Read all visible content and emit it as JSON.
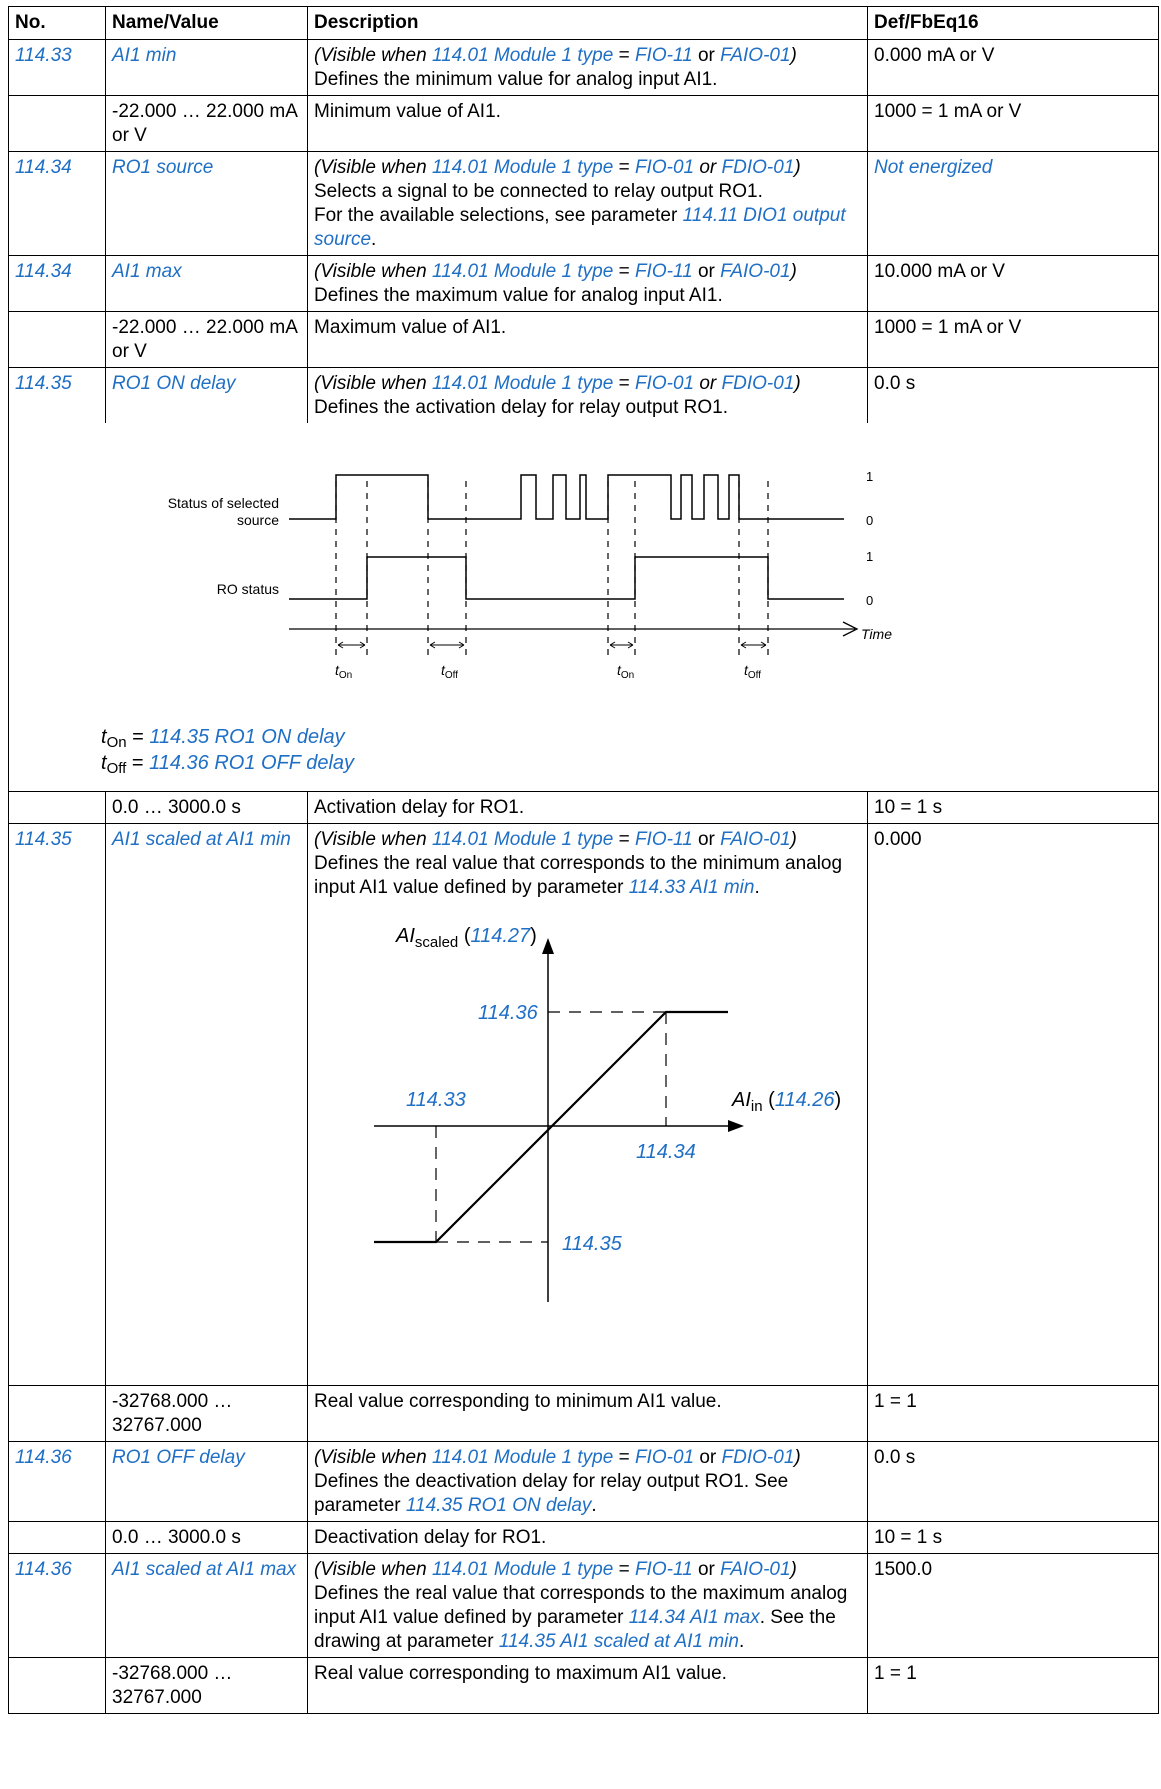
{
  "headers": {
    "no": "No.",
    "name": "Name/Value",
    "desc": "Description",
    "def": "Def/FbEq16"
  },
  "common": {
    "visible_when": "(Visible when",
    "module_type": "114.01 Module 1 type",
    "eq": "=",
    "or": "or",
    "close": ")",
    "fio11": "FIO-11",
    "faio01": "FAIO-01",
    "fio01": "FIO-01",
    "fdio01": "FDIO-01",
    "or_it": "or"
  },
  "rows": {
    "r1": {
      "no": "114.33",
      "name": "AI1 min",
      "desc": "Defines the minimum value for analog input AI1.",
      "def": "0.000 mA or V"
    },
    "r2": {
      "name": "-22.000 … 22.000 mA or V",
      "desc": "Minimum value of AI1.",
      "def": "1000 = 1 mA or V"
    },
    "r3": {
      "no": "114.34",
      "name": "RO1 source",
      "desc1": "Selects a signal to be connected to relay output RO1.",
      "desc2a": "For the available selections, see parameter",
      "desc2link": "114.11 DIO1 output source",
      "desc2b": ".",
      "def": "Not energized"
    },
    "r4": {
      "no": "114.34",
      "name": "AI1 max",
      "desc": "Defines the maximum value for analog input AI1.",
      "def": "10.000 mA or V"
    },
    "r5": {
      "name": "-22.000 … 22.000 mA or V",
      "desc": "Maximum value of AI1.",
      "def": "1000 = 1 mA or V"
    },
    "r6": {
      "no": "114.35",
      "name": "RO1 ON delay",
      "desc": "Defines the activation delay for relay output RO1.",
      "def": "0.0 s"
    },
    "r7": {
      "name": "0.0 … 3000.0 s",
      "desc": "Activation delay for RO1.",
      "def": "10 = 1 s"
    },
    "r8": {
      "no": "114.35",
      "name": "AI1 scaled at AI1 min",
      "desc_a": "Defines the real value that corresponds to the minimum analog input AI1 value defined by parameter",
      "desc_link": "114.33 AI1 min",
      "desc_b": ".",
      "def": "0.000"
    },
    "r9": {
      "name": "-32768.000 … 32767.000",
      "desc": "Real value corresponding to minimum AI1 value.",
      "def": "1 = 1"
    },
    "r10": {
      "no": "114.36",
      "name": "RO1 OFF delay",
      "desc_a": "Defines the deactivation delay for relay output RO1. See parameter",
      "desc_link": "114.35 RO1 ON delay",
      "desc_b": ".",
      "def": "0.0 s"
    },
    "r11": {
      "name": "0.0 … 3000.0 s",
      "desc": "Deactivation delay for RO1.",
      "def": "10 = 1 s"
    },
    "r12": {
      "no": "114.36",
      "name": "AI1 scaled at AI1 max",
      "desc_a": "Defines the real value that corresponds to the maximum analog input AI1 value defined by parameter",
      "desc_link": "114.34 AI1 max",
      "desc_b": ". See the drawing at parameter",
      "desc_link2": "114.35 AI1 scaled at AI1 min",
      "desc_c": ".",
      "def": "1500.0"
    },
    "r13": {
      "name": "-32768.000 … 32767.000",
      "desc": "Real value corresponding to maximum AI1 value.",
      "def": "1 = 1"
    }
  },
  "timing": {
    "status_label_1": "Status of selected",
    "status_label_2": "source",
    "ro_label": "RO status",
    "one": "1",
    "zero": "0",
    "time": "Time",
    "t": "t",
    "on": "On",
    "off": "Off",
    "ton_legend": "114.35 RO1 ON delay",
    "toff_legend": "114.36 RO1 OFF delay",
    "legend_eq": " = "
  },
  "scaling": {
    "ai": "AI",
    "scaled": "scaled",
    "in": "in",
    "y_ref": "114.27",
    "x_ref": "114.26",
    "label_top": "114.36",
    "label_left": "114.33",
    "label_right": "114.34",
    "label_bottom": "114.35"
  },
  "colors": {
    "link": "#1f6fc5"
  }
}
